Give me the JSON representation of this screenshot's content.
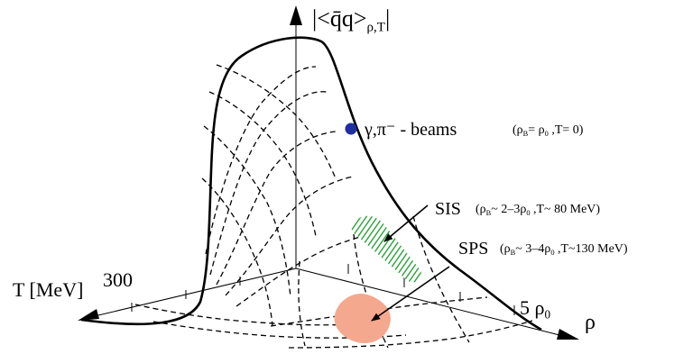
{
  "axis_labels": {
    "vertical_open": "|<",
    "vertical_core": "q̄q>",
    "vertical_sub": "ρ,T",
    "vertical_close": "|",
    "temperature": "T [MeV]",
    "temperature_tick": "300",
    "density": "ρ",
    "density_tick_value": "5",
    "density_tick_rho": "ρ",
    "density_tick_sub": "0"
  },
  "annotations": {
    "beams": {
      "label": "γ,π⁻ - beams",
      "cond_open": "(ρ",
      "cond_sub1": "B",
      "cond_mid": "= ρ",
      "cond_sub2": "0",
      "cond_close": " ,T= 0)",
      "marker_color": "#1f2fa0"
    },
    "sis": {
      "label": "SIS",
      "cond_open": "(ρ",
      "cond_sub1": "B",
      "cond_mid": "~ 2–3ρ",
      "cond_sub2": "0",
      "cond_close": " ,T~ 80 MeV)",
      "region_color": "#1a9a2a"
    },
    "sps": {
      "label": "SPS",
      "cond_open": "(ρ",
      "cond_sub1": "B",
      "cond_mid": "~ 3–4ρ",
      "cond_sub2": "0",
      "cond_close": " ,T~130 MeV)",
      "region_color": "#f4a88e"
    }
  }
}
